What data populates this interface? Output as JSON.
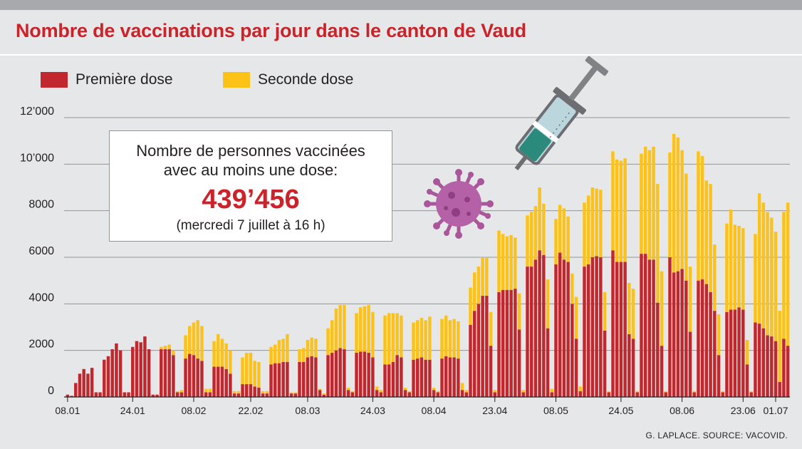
{
  "title": "Nombre de vaccinations par jour dans le canton de Vaud",
  "legend": [
    {
      "label": "Première dose",
      "color": "#c1272d"
    },
    {
      "label": "Seconde dose",
      "color": "#fdc218"
    }
  ],
  "infobox": {
    "line1": "Nombre de personnes vaccinées",
    "line2": "avec au moins une dose:",
    "value": "439’456",
    "date": "(mercredi 7 juillet à 16 h)"
  },
  "source": "G. LAPLACE. SOURCE: VACOVID.",
  "illustration": {
    "syringe": "syringe-icon",
    "virus": "virus-icon"
  },
  "chart_data": {
    "type": "bar",
    "stacked": true,
    "title": "Nombre de vaccinations par jour dans le canton de Vaud",
    "ylim": [
      0,
      12000
    ],
    "yticks": [
      0,
      2000,
      4000,
      6000,
      8000,
      10000,
      12000
    ],
    "ytick_labels": [
      "0",
      "2000",
      "4000",
      "6000",
      "8000",
      "10’000",
      "12’000"
    ],
    "grid": true,
    "xtick_labels": [
      {
        "label": "08.01",
        "day": 0
      },
      {
        "label": "24.01",
        "day": 16
      },
      {
        "label": "08.02",
        "day": 31
      },
      {
        "label": "22.02",
        "day": 45
      },
      {
        "label": "08.03",
        "day": 59
      },
      {
        "label": "24.03",
        "day": 75
      },
      {
        "label": "08.04",
        "day": 90
      },
      {
        "label": "23.04",
        "day": 105
      },
      {
        "label": "08.05",
        "day": 120
      },
      {
        "label": "24.05",
        "day": 136
      },
      {
        "label": "08.06",
        "day": 151
      },
      {
        "label": "23.06",
        "day": 166
      },
      {
        "label": "01.07",
        "day": 174
      }
    ],
    "series": [
      {
        "name": "Première dose",
        "color": "#c1272d",
        "values": [
          100,
          50,
          600,
          1000,
          1200,
          1000,
          1250,
          200,
          200,
          1600,
          1750,
          2050,
          2300,
          2000,
          200,
          200,
          2150,
          2400,
          2350,
          2600,
          2050,
          100,
          100,
          2050,
          2050,
          2050,
          1800,
          200,
          200,
          1650,
          1850,
          1800,
          1650,
          1550,
          200,
          200,
          1300,
          1300,
          1300,
          1200,
          1000,
          150,
          150,
          550,
          550,
          550,
          450,
          400,
          150,
          150,
          1400,
          1450,
          1450,
          1500,
          1500,
          150,
          150,
          1500,
          1500,
          1700,
          1750,
          1700,
          300,
          100,
          1800,
          1900,
          2000,
          2100,
          2050,
          300,
          200,
          1900,
          1950,
          1950,
          1900,
          1700,
          300,
          200,
          1400,
          1400,
          1500,
          1800,
          1700,
          300,
          200,
          1600,
          1650,
          1700,
          1600,
          1600,
          300,
          200,
          1650,
          1750,
          1700,
          1700,
          1650,
          300,
          200,
          3100,
          3700,
          4000,
          4350,
          4350,
          2200,
          200,
          4500,
          4600,
          4600,
          4600,
          4650,
          2900,
          200,
          5600,
          5600,
          5900,
          6300,
          6100,
          2950,
          200,
          5700,
          6200,
          5900,
          5800,
          4000,
          2500,
          250,
          5600,
          5700,
          6000,
          6050,
          6000,
          2850,
          200,
          6300,
          5800,
          5800,
          5800,
          2700,
          2500,
          200,
          6150,
          6150,
          5900,
          5900,
          4050,
          2200,
          200,
          6000,
          5350,
          5400,
          5500,
          5000,
          2800,
          200,
          5000,
          5050,
          4850,
          4500,
          3700,
          1800,
          200,
          3650,
          3750,
          3750,
          3850,
          3750,
          1400,
          200,
          3200,
          3150,
          2950,
          2650,
          2600,
          2400,
          650,
          2500,
          2200
        ]
      },
      {
        "name": "Seconde dose",
        "color": "#fdc218",
        "values": [
          0,
          0,
          0,
          0,
          0,
          0,
          0,
          0,
          0,
          0,
          0,
          0,
          0,
          0,
          0,
          0,
          0,
          0,
          0,
          0,
          0,
          0,
          0,
          100,
          150,
          200,
          200,
          50,
          100,
          1000,
          1200,
          1400,
          1650,
          1500,
          150,
          150,
          1100,
          1400,
          1200,
          1100,
          1000,
          100,
          100,
          1150,
          1350,
          1350,
          1100,
          1100,
          100,
          100,
          750,
          800,
          1000,
          1000,
          1200,
          50,
          50,
          550,
          600,
          750,
          800,
          800,
          50,
          50,
          1150,
          1400,
          1800,
          1850,
          1900,
          100,
          50,
          1700,
          1900,
          1950,
          2050,
          1950,
          150,
          100,
          2100,
          2200,
          2100,
          1800,
          1800,
          100,
          50,
          1600,
          1650,
          1700,
          1700,
          1850,
          100,
          50,
          1700,
          1750,
          1600,
          1650,
          1600,
          300,
          100,
          1600,
          1650,
          1600,
          1650,
          1650,
          1450,
          100,
          2650,
          2400,
          2300,
          2350,
          2200,
          1550,
          100,
          2200,
          2350,
          2300,
          2700,
          2200,
          2100,
          150,
          1950,
          2050,
          2200,
          1950,
          1300,
          1800,
          200,
          2750,
          2950,
          3000,
          2900,
          2900,
          1650,
          50,
          4250,
          4400,
          4350,
          4450,
          2200,
          2150,
          50,
          4300,
          4600,
          4700,
          4850,
          5100,
          3200,
          50,
          4500,
          5950,
          5750,
          5100,
          4600,
          2800,
          50,
          5550,
          5300,
          4450,
          4650,
          2850,
          1750,
          50,
          3800,
          4300,
          3650,
          3500,
          3500,
          1050,
          50,
          3800,
          5600,
          5400,
          5300,
          5100,
          4700,
          3050,
          5450,
          6150
        ]
      }
    ]
  }
}
